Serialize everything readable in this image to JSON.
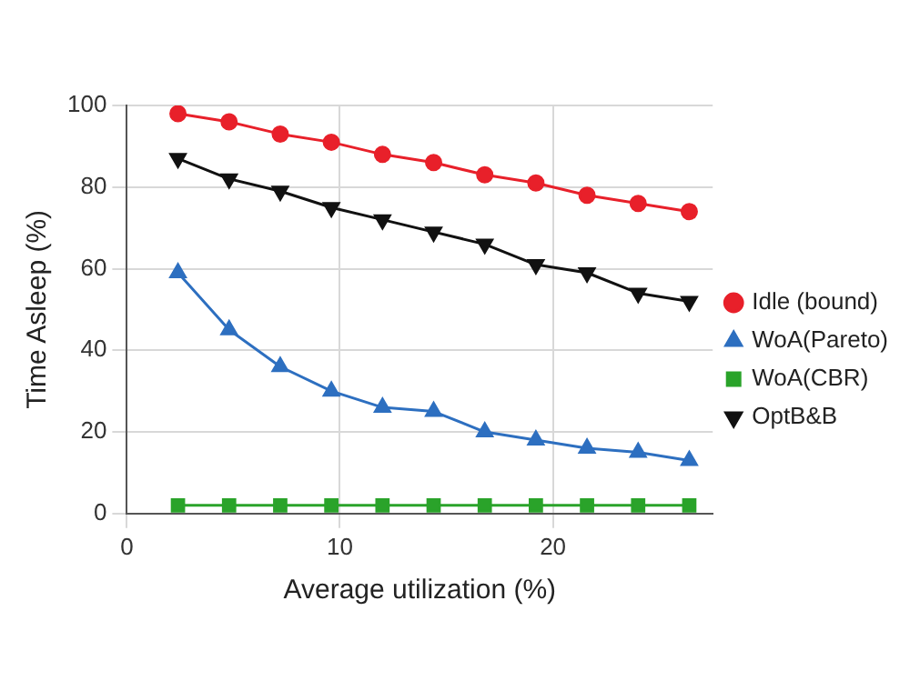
{
  "chart_data": {
    "type": "line",
    "xlabel": "Average utilization (%)",
    "ylabel": "Time Asleep (%)",
    "x": [
      2.4,
      4.8,
      7.2,
      9.6,
      12,
      14.4,
      16.8,
      19.2,
      21.6,
      24,
      26.4
    ],
    "xlim": [
      0,
      27.5
    ],
    "xticks": [
      0,
      10,
      20
    ],
    "ylim": [
      0,
      100
    ],
    "yticks": [
      0,
      20,
      40,
      60,
      80,
      100
    ],
    "grid": true,
    "legend": "right",
    "series": [
      {
        "name": "Idle (bound)",
        "color": "#e8202a",
        "marker": "circle",
        "values": [
          98,
          96,
          93,
          91,
          88,
          86,
          83,
          81,
          78,
          76,
          74
        ]
      },
      {
        "name": "WoA(Pareto)",
        "color": "#2d6fc0",
        "marker": "triangle",
        "values": [
          59,
          45,
          36,
          30,
          26,
          25,
          20,
          18,
          16,
          15,
          13
        ]
      },
      {
        "name": "WoA(CBR)",
        "color": "#2aa32a",
        "marker": "square",
        "values": [
          2,
          2,
          2,
          2,
          2,
          2,
          2,
          2,
          2,
          2,
          2
        ]
      },
      {
        "name": "OptB&B",
        "color": "#111111",
        "marker": "triangle-down",
        "values": [
          87,
          82,
          79,
          75,
          72,
          69,
          66,
          61,
          59,
          54,
          52
        ]
      }
    ]
  }
}
